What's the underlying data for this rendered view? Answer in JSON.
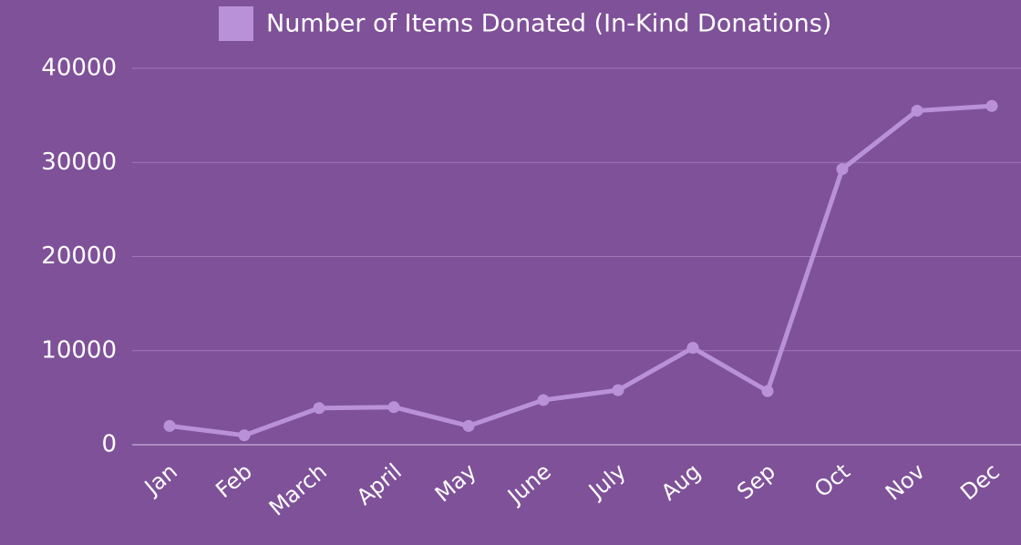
{
  "chart_data": {
    "type": "line",
    "categories": [
      "Jan",
      "Feb",
      "March",
      "April",
      "May",
      "June",
      "July",
      "Aug",
      "Sep",
      "Oct",
      "Nov",
      "Dec"
    ],
    "series": [
      {
        "name": "Number of Items Donated (In-Kind Donations)",
        "color": "#b991d9",
        "values": [
          2000,
          1000,
          3900,
          4000,
          2000,
          4750,
          5800,
          10300,
          5700,
          29300,
          35500,
          36000
        ]
      }
    ],
    "ylim": [
      0,
      40000
    ],
    "yticks": [
      0,
      10000,
      20000,
      30000,
      40000
    ],
    "grid": true,
    "legend": "top"
  }
}
